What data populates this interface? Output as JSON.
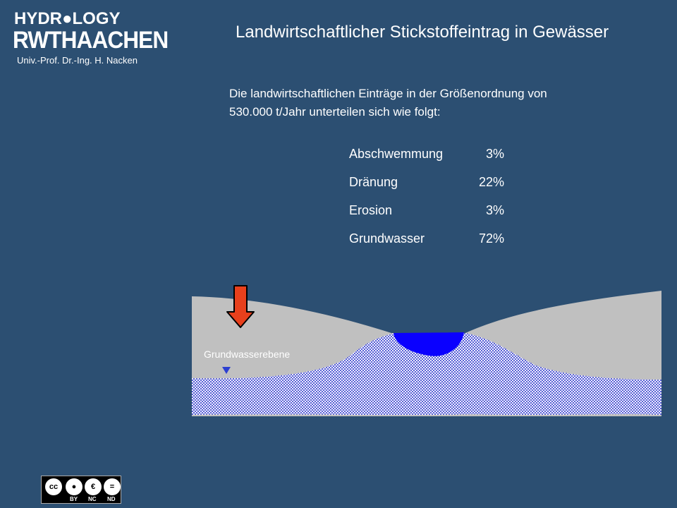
{
  "logo": {
    "top": "HYDR●LOGY",
    "bottom": "RWTHAACHEN",
    "subtitle": "Univ.-Prof. Dr.-Ing. H. Nacken"
  },
  "title": "Landwirtschaftlicher Stickstoffeintrag in Gewässer",
  "intro": {
    "line1": "Die landwirtschaftlichen Einträge in der Größenordnung von",
    "line2": "530.000 t/Jahr unterteilen sich wie folgt:"
  },
  "breakdown": [
    {
      "label": "Abschwemmung",
      "value": "3%"
    },
    {
      "label": "Dränung",
      "value": "22%"
    },
    {
      "label": "Erosion",
      "value": "3%"
    },
    {
      "label": "Grundwasser",
      "value": "72%"
    }
  ],
  "diagram": {
    "groundwater_label": "Grundwasserebene",
    "colors": {
      "soil": "#c0c0c0",
      "groundwater": "#b8b8e8",
      "river": "#0a00ff",
      "arrow": "#e8401c",
      "marker": "#2c3fd1"
    }
  },
  "license": {
    "cc": "cc",
    "by": "BY",
    "nc": "NC",
    "nd": "ND"
  }
}
